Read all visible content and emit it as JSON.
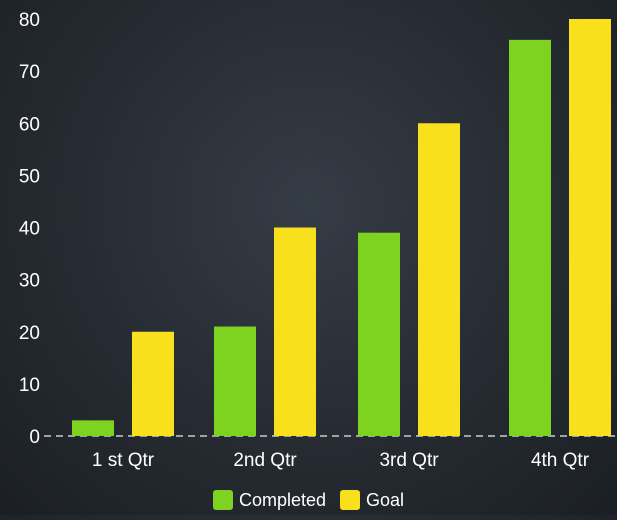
{
  "chart_data": {
    "type": "bar",
    "categories": [
      "1 st Qtr",
      "2nd Qtr",
      "3rd Qtr",
      "4th Qtr"
    ],
    "series": [
      {
        "name": "Completed",
        "values": [
          3,
          21,
          39,
          76
        ],
        "color": "#7ed321"
      },
      {
        "name": "Goal",
        "values": [
          20,
          40,
          60,
          80
        ],
        "color": "#f8e01c"
      }
    ],
    "yticks": [
      "0",
      "10",
      "20",
      "30",
      "40",
      "50",
      "60",
      "70",
      "80"
    ],
    "ylim": [
      0,
      80
    ],
    "grid": false,
    "legend_position": "bottom"
  }
}
